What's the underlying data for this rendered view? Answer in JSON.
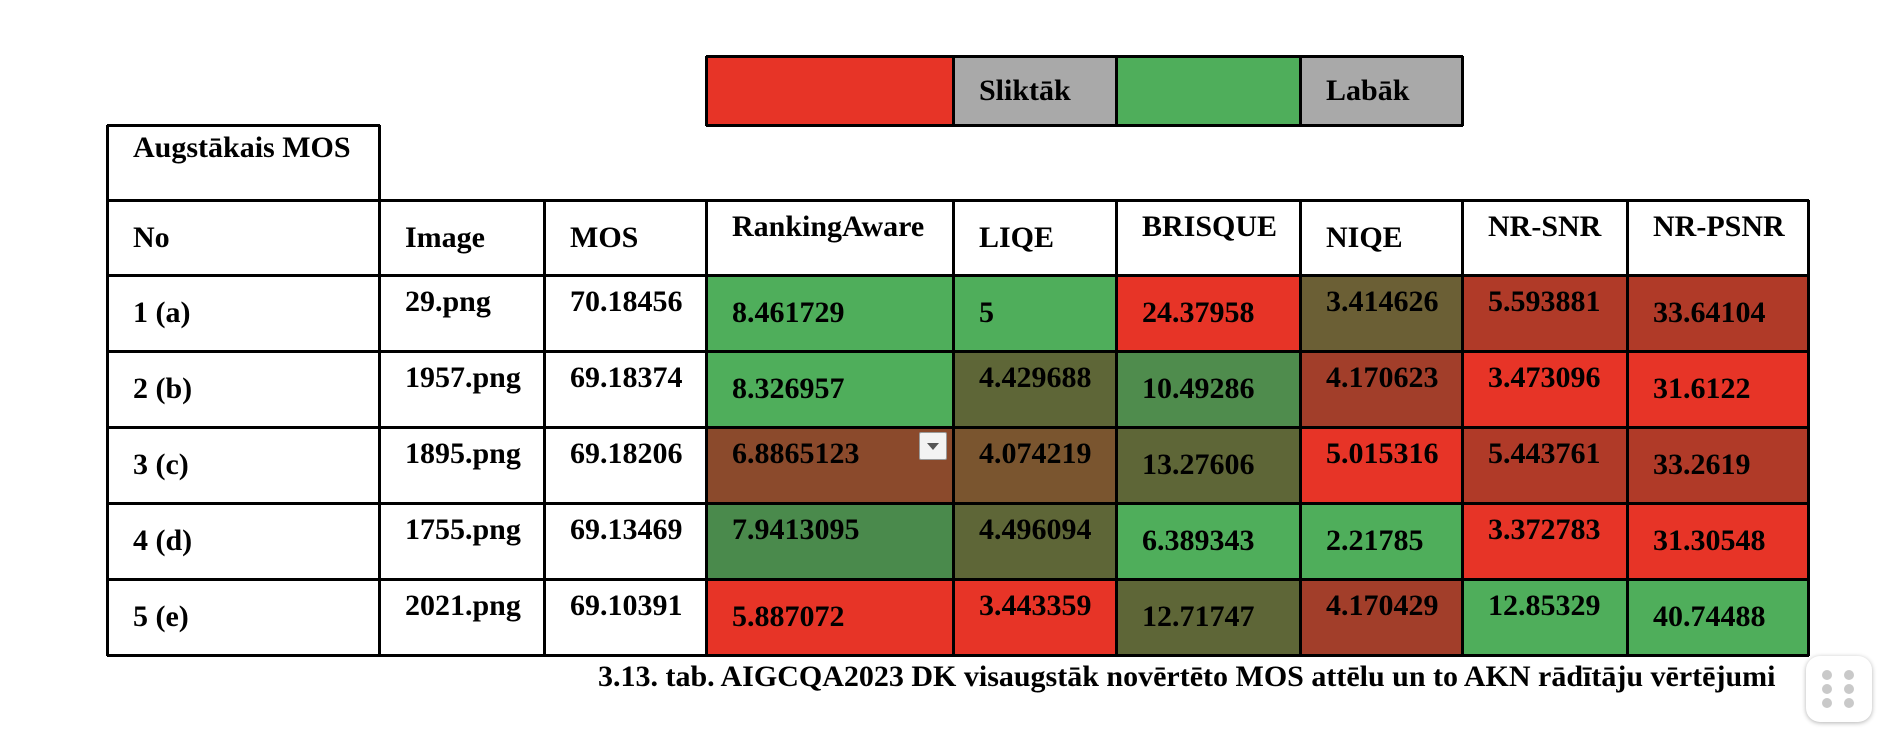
{
  "legend": {
    "worse_label": "Sliktāk",
    "better_label": "Labāk",
    "worse_color": "#e73427",
    "better_color": "#4fae5b",
    "label_bg": "#a9a9a9"
  },
  "table": {
    "title": "Augstākais MOS",
    "headers": [
      "No",
      "Image",
      "MOS",
      "RankingAware",
      "LIQE",
      "BRISQUE",
      "NIQE",
      "NR-SNR",
      "NR-PSNR"
    ],
    "rows": [
      {
        "no": "1 (a)",
        "image": "29.png",
        "mos": "70.18456",
        "values": [
          "8.461729",
          "5",
          "24.37958",
          "3.414626",
          "5.593881",
          "33.64104"
        ],
        "colors": [
          "#4fae5b",
          "#4fae5b",
          "#e73427",
          "#6b5f35",
          "#b03a28",
          "#b03a28"
        ]
      },
      {
        "no": "2 (b)",
        "image": "1957.png",
        "mos": "69.18374",
        "values": [
          "8.326957",
          "4.429688",
          "10.49286",
          "4.170623",
          "3.473096",
          "31.6122"
        ],
        "colors": [
          "#4fae5b",
          "#5e6637",
          "#4f8c4d",
          "#a23e2a",
          "#e73427",
          "#e73427"
        ]
      },
      {
        "no": "3 (c)",
        "image": "1895.png",
        "mos": "69.18206",
        "values": [
          "6.8865123",
          "4.074219",
          "13.27606",
          "5.015316",
          "5.443761",
          "33.2619"
        ],
        "colors": [
          "#8b4a2c",
          "#7a552f",
          "#5e6637",
          "#e73427",
          "#b03a28",
          "#b03a28"
        ]
      },
      {
        "no": "4 (d)",
        "image": "1755.png",
        "mos": "69.13469",
        "values": [
          "7.9413095",
          "4.496094",
          "6.389343",
          "2.21785",
          "3.372783",
          "31.30548"
        ],
        "colors": [
          "#4a8a4c",
          "#5e6637",
          "#4fae5b",
          "#4fae5b",
          "#e73427",
          "#e73427"
        ]
      },
      {
        "no": "5 (e)",
        "image": "2021.png",
        "mos": "69.10391",
        "values": [
          "5.887072",
          "3.443359",
          "12.71747",
          "4.170429",
          "12.85329",
          "40.74488"
        ],
        "colors": [
          "#e73427",
          "#e73427",
          "#5e6637",
          "#a23e2a",
          "#4fae5b",
          "#4fae5b"
        ]
      }
    ]
  },
  "caption": "3.13. tab. AIGCQA2023 DK visaugstāk novērtēto MOS attēlu un to AKN rādītāju vērtējumi"
}
